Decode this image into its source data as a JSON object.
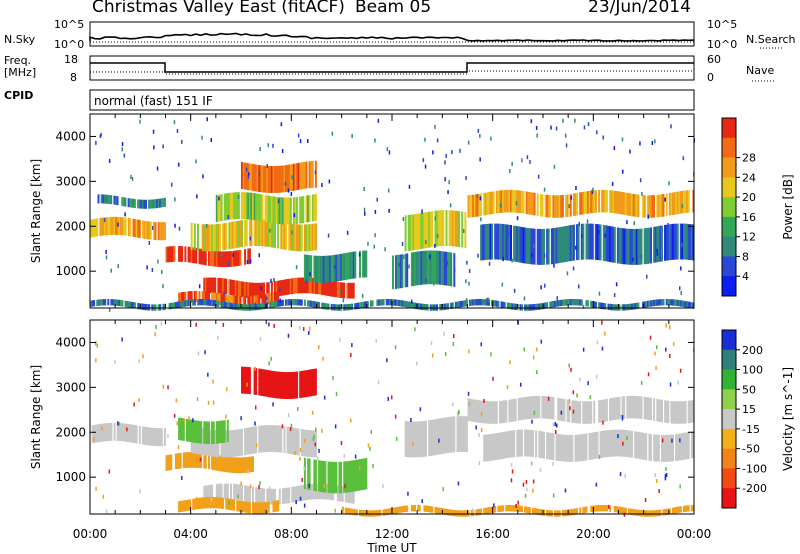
{
  "header": {
    "station": "Christmas Valley East (fitACF)",
    "beam": "Beam 05",
    "date": "23/Jun/2014"
  },
  "control_panel": {
    "nsky_label": "N.Sky",
    "nsearch_label": "N.Search",
    "noise_ticks": [
      "10^5",
      "10^0"
    ],
    "noise_ticks_right": [
      "10^5",
      "10^0"
    ],
    "freq_label": "Freq.",
    "freq_unit": "[MHz]",
    "freq_ticks": [
      "18",
      "8"
    ],
    "nave_label": "Nave",
    "nave_ticks": [
      "60",
      "0"
    ],
    "cpid_label": "CPID",
    "cpid_value": "normal (fast) 151 IF"
  },
  "chart_data": [
    {
      "type": "heatmap",
      "name": "power",
      "ylabel": "Slant Range [km]",
      "ylim": [
        180,
        4500
      ],
      "yticks": [
        "1000",
        "2000",
        "3000",
        "4000"
      ],
      "xlim": [
        "00:00",
        "24:00"
      ],
      "colorbar_label": "Power [dB]",
      "colorbar_ticks": [
        "4",
        "8",
        "12",
        "16",
        "20",
        "24",
        "28"
      ],
      "colorbar_colors": [
        "#0a1ef0",
        "#2b47d6",
        "#2f8a7a",
        "#33a65a",
        "#7fcc33",
        "#e6c81e",
        "#f29a1a",
        "#f26a14",
        "#e62814"
      ],
      "echo_bands": [
        {
          "t0": 0.0,
          "t1": 3.0,
          "r0": 1750,
          "r1": 2150,
          "level": 0.7
        },
        {
          "t0": 0.3,
          "t1": 3.0,
          "r0": 2450,
          "r1": 2650,
          "level": 0.3
        },
        {
          "t0": 3.0,
          "t1": 6.5,
          "r0": 1150,
          "r1": 1500,
          "level": 0.95
        },
        {
          "t0": 4.0,
          "t1": 9.0,
          "r0": 1500,
          "r1": 2100,
          "level": 0.6
        },
        {
          "t0": 5.0,
          "t1": 9.0,
          "r0": 2100,
          "r1": 2700,
          "level": 0.55
        },
        {
          "t0": 6.0,
          "t1": 9.0,
          "r0": 2800,
          "r1": 3400,
          "level": 0.8
        },
        {
          "t0": 4.5,
          "t1": 10.5,
          "r0": 450,
          "r1": 800,
          "level": 0.95
        },
        {
          "t0": 3.5,
          "t1": 7.5,
          "r0": 250,
          "r1": 500,
          "level": 0.85
        },
        {
          "t0": 8.5,
          "t1": 11.0,
          "r0": 800,
          "r1": 1400,
          "level": 0.3
        },
        {
          "t0": 12.5,
          "t1": 15.0,
          "r0": 1500,
          "r1": 2300,
          "level": 0.6
        },
        {
          "t0": 12.0,
          "t1": 14.5,
          "r0": 650,
          "r1": 1400,
          "level": 0.3
        },
        {
          "t0": 15.0,
          "t1": 24.0,
          "r0": 2250,
          "r1": 2750,
          "level": 0.7
        },
        {
          "t0": 15.5,
          "t1": 24.0,
          "r0": 1200,
          "r1": 2000,
          "level": 0.2
        },
        {
          "t0": 0.0,
          "t1": 24.0,
          "r0": 180,
          "r1": 320,
          "level": 0.25
        }
      ]
    },
    {
      "type": "heatmap",
      "name": "velocity",
      "ylabel": "Slant Range [km]",
      "ylim": [
        180,
        4500
      ],
      "yticks": [
        "1000",
        "2000",
        "3000",
        "4000"
      ],
      "xlabel": "Time UT",
      "xticks": [
        "00:00",
        "04:00",
        "08:00",
        "12:00",
        "16:00",
        "20:00",
        "00:00"
      ],
      "colorbar_label": "Velocity [m s^-1]",
      "colorbar_ticks": [
        "200",
        "100",
        "50",
        "15",
        "-15",
        "-50",
        "-100",
        "-200"
      ],
      "colorbar_colors": [
        "#1a2ed6",
        "#2f7f7a",
        "#33b233",
        "#8fd14f",
        "#c8c8c8",
        "#f2b01a",
        "#f2821a",
        "#f24a14",
        "#e61414"
      ],
      "echo_bands": [
        {
          "t0": 0.0,
          "t1": 3.0,
          "r0": 1750,
          "r1": 2150,
          "vel": "gray"
        },
        {
          "t0": 3.0,
          "t1": 6.5,
          "r0": 1150,
          "r1": 1500,
          "vel": "orange"
        },
        {
          "t0": 4.0,
          "t1": 9.0,
          "r0": 1500,
          "r1": 2100,
          "vel": "gray"
        },
        {
          "t0": 3.5,
          "t1": 5.5,
          "r0": 1800,
          "r1": 2300,
          "vel": "green"
        },
        {
          "t0": 6.0,
          "t1": 9.0,
          "r0": 2800,
          "r1": 3400,
          "vel": "red"
        },
        {
          "t0": 4.5,
          "t1": 10.5,
          "r0": 450,
          "r1": 800,
          "vel": "gray"
        },
        {
          "t0": 3.5,
          "t1": 7.5,
          "r0": 250,
          "r1": 500,
          "vel": "orange"
        },
        {
          "t0": 8.5,
          "t1": 11.0,
          "r0": 700,
          "r1": 1400,
          "vel": "green"
        },
        {
          "t0": 12.5,
          "t1": 15.0,
          "r0": 1500,
          "r1": 2300,
          "vel": "gray"
        },
        {
          "t0": 15.0,
          "t1": 24.0,
          "r0": 2250,
          "r1": 2750,
          "vel": "gray"
        },
        {
          "t0": 15.5,
          "t1": 24.0,
          "r0": 1400,
          "r1": 2000,
          "vel": "gray"
        },
        {
          "t0": 10.0,
          "t1": 24.0,
          "r0": 180,
          "r1": 320,
          "vel": "orange"
        }
      ]
    }
  ]
}
